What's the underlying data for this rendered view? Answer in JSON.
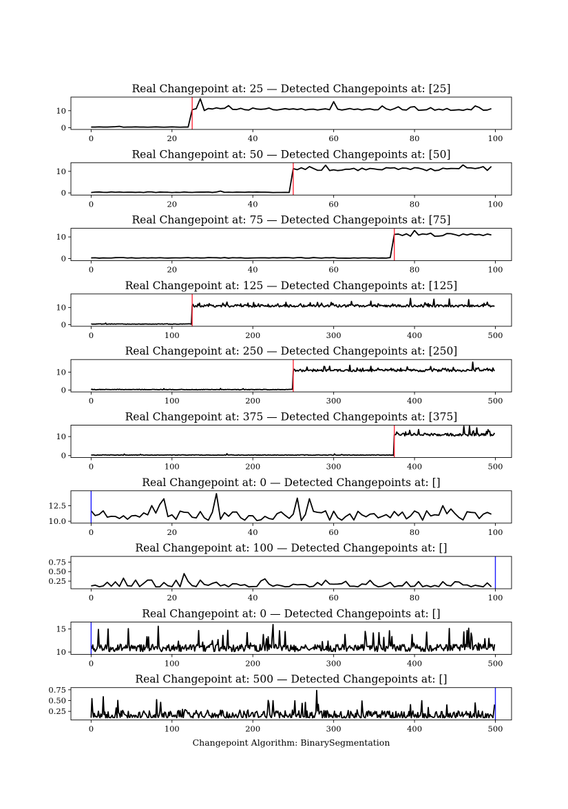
{
  "figure": {
    "xlabel": "Changepoint Algorithm: BinarySegmentation"
  },
  "chart_data": [
    {
      "type": "line",
      "title": "Real Changepoint at: 25 — Detected Changepoints at: [25]",
      "n": 100,
      "real_cp": 25,
      "detected": [
        25
      ],
      "marker": "detected",
      "low": 0.4,
      "high": 11,
      "noise": "small-step",
      "xlim": [
        -5,
        104
      ],
      "ylim": [
        -1,
        18
      ],
      "xticks": [
        0,
        20,
        40,
        60,
        80,
        100
      ],
      "yticks": [
        0,
        10
      ],
      "xticklabels": [
        "0",
        "20",
        "40",
        "60",
        "80",
        "100"
      ],
      "yticklabels": [
        "0",
        "10"
      ],
      "series": [
        {
          "color": "#000000",
          "approx_values": [
            0.4,
            0.4,
            0.5,
            0.4,
            0.4,
            0.5,
            0.6,
            0.8,
            0.3,
            0.4,
            0.4,
            0.5,
            0.4,
            0.4,
            0.3,
            0.4,
            0.5,
            0.4,
            0.3,
            0.4,
            0.5,
            0.4,
            0.3,
            0.4,
            0.4,
            10.6,
            11.2,
            17.0,
            10.1,
            11.3,
            11.0,
            11.7,
            11.2,
            11.4,
            13.0,
            10.8,
            10.7,
            11.4,
            10.6,
            10.4,
            11.6,
            11.0,
            10.8,
            11.0,
            11.6,
            10.6,
            10.4,
            10.8,
            11.2,
            10.8,
            11.1,
            10.7,
            11.2,
            10.4,
            10.8,
            10.9,
            10.4,
            10.8,
            11.1,
            10.6,
            15.3,
            10.9,
            10.4,
            10.8,
            11.3,
            10.7,
            11.0,
            10.4,
            10.9,
            11.1,
            10.5,
            10.6,
            12.8,
            11.1,
            10.4,
            11.2,
            12.3,
            10.6,
            10.4,
            12.1,
            12.4,
            10.2,
            10.4,
            10.6,
            11.8,
            10.3,
            10.9,
            10.4,
            11.3,
            10.2,
            10.4,
            10.6,
            10.2,
            10.9,
            10.5,
            12.8,
            11.9,
            10.3,
            10.4,
            11.2
          ]
        }
      ]
    },
    {
      "type": "line",
      "title": "Real Changepoint at: 50 — Detected Changepoints at: [50]",
      "n": 100,
      "real_cp": 50,
      "detected": [
        50
      ],
      "marker": "detected",
      "low": 0.3,
      "high": 11,
      "noise": "small-step",
      "xlim": [
        -5,
        104
      ],
      "ylim": [
        -1,
        14
      ],
      "xticks": [
        0,
        20,
        40,
        60,
        80,
        100
      ],
      "yticks": [
        0,
        10
      ],
      "xticklabels": [
        "0",
        "20",
        "40",
        "60",
        "80",
        "100"
      ],
      "yticklabels": [
        "0",
        "10"
      ],
      "series": [
        {
          "color": "#000000"
        }
      ]
    },
    {
      "type": "line",
      "title": "Real Changepoint at: 75 — Detected Changepoints at: [75]",
      "n": 100,
      "real_cp": 75,
      "detected": [
        75
      ],
      "marker": "detected",
      "low": 0.3,
      "high": 11,
      "noise": "small-step",
      "xlim": [
        -5,
        104
      ],
      "ylim": [
        -1,
        14
      ],
      "xticks": [
        0,
        20,
        40,
        60,
        80,
        100
      ],
      "yticks": [
        0,
        10
      ],
      "xticklabels": [
        "0",
        "20",
        "40",
        "60",
        "80",
        "100"
      ],
      "yticklabels": [
        "0",
        "10"
      ],
      "series": [
        {
          "color": "#000000"
        }
      ]
    },
    {
      "type": "line",
      "title": "Real Changepoint at: 125 — Detected Changepoints at: [125]",
      "n": 500,
      "real_cp": 125,
      "detected": [
        125
      ],
      "marker": "detected",
      "low": 0.3,
      "high": 11,
      "noise": "spiky",
      "xlim": [
        -25,
        520
      ],
      "ylim": [
        -1,
        18
      ],
      "xticks": [
        0,
        100,
        200,
        300,
        400,
        500
      ],
      "yticks": [
        0,
        10
      ],
      "xticklabels": [
        "0",
        "100",
        "200",
        "300",
        "400",
        "500"
      ],
      "yticklabels": [
        "0",
        "10"
      ],
      "series": [
        {
          "color": "#000000"
        }
      ]
    },
    {
      "type": "line",
      "title": "Real Changepoint at: 250 — Detected Changepoints at: [250]",
      "n": 500,
      "real_cp": 250,
      "detected": [
        250
      ],
      "marker": "detected",
      "low": 0.3,
      "high": 11,
      "noise": "spiky",
      "xlim": [
        -25,
        520
      ],
      "ylim": [
        -1,
        17
      ],
      "xticks": [
        0,
        100,
        200,
        300,
        400,
        500
      ],
      "yticks": [
        0,
        10
      ],
      "xticklabels": [
        "0",
        "100",
        "200",
        "300",
        "400",
        "500"
      ],
      "yticklabels": [
        "0",
        "10"
      ],
      "series": [
        {
          "color": "#000000"
        }
      ]
    },
    {
      "type": "line",
      "title": "Real Changepoint at: 375 — Detected Changepoints at: [375]",
      "n": 500,
      "real_cp": 375,
      "detected": [
        375
      ],
      "marker": "detected",
      "low": 0.3,
      "high": 11,
      "noise": "spiky",
      "xlim": [
        -25,
        520
      ],
      "ylim": [
        -1,
        16
      ],
      "xticks": [
        0,
        100,
        200,
        300,
        400,
        500
      ],
      "yticks": [
        0,
        10
      ],
      "xticklabels": [
        "0",
        "100",
        "200",
        "300",
        "400",
        "500"
      ],
      "yticklabels": [
        "0",
        "10"
      ],
      "series": [
        {
          "color": "#000000"
        }
      ]
    },
    {
      "type": "line",
      "title": "Real Changepoint at: 0 — Detected Changepoints at: []",
      "n": 100,
      "real_cp": 0,
      "detected": [],
      "marker": "real",
      "low": 10.8,
      "high": 10.8,
      "noise": "stationary",
      "xlim": [
        -5,
        104
      ],
      "ylim": [
        9.7,
        14.9
      ],
      "xticks": [
        0,
        20,
        40,
        60,
        80,
        100
      ],
      "yticks": [
        10,
        12.5
      ],
      "xticklabels": [
        "0",
        "20",
        "40",
        "60",
        "80",
        "100"
      ],
      "yticklabels": [
        "10.0",
        "12.5"
      ],
      "series": [
        {
          "color": "#000000"
        }
      ]
    },
    {
      "type": "line",
      "title": "Real Changepoint at: 100 — Detected Changepoints at: []",
      "n": 100,
      "real_cp": 100,
      "detected": [],
      "marker": "real",
      "low": 0.18,
      "high": 0.18,
      "noise": "small-positive",
      "xlim": [
        -5,
        104
      ],
      "ylim": [
        0.05,
        0.9
      ],
      "xticks": [
        0,
        20,
        40,
        60,
        80,
        100
      ],
      "yticks": [
        0.25,
        0.5,
        0.75
      ],
      "xticklabels": [
        "0",
        "20",
        "40",
        "60",
        "80",
        "100"
      ],
      "yticklabels": [
        "0.25",
        "0.50",
        "0.75"
      ],
      "series": [
        {
          "color": "#000000"
        }
      ]
    },
    {
      "type": "line",
      "title": "Real Changepoint at: 0 — Detected Changepoints at: []",
      "n": 500,
      "real_cp": 0,
      "detected": [],
      "marker": "real",
      "low": 10.8,
      "high": 10.8,
      "noise": "stationary-spiky",
      "xlim": [
        -25,
        520
      ],
      "ylim": [
        9.5,
        16.5
      ],
      "xticks": [
        0,
        100,
        200,
        300,
        400,
        500
      ],
      "yticks": [
        10,
        15
      ],
      "xticklabels": [
        "0",
        "100",
        "200",
        "300",
        "400",
        "500"
      ],
      "yticklabels": [
        "10",
        "15"
      ],
      "series": [
        {
          "color": "#000000"
        }
      ]
    },
    {
      "type": "line",
      "title": "Real Changepoint at: 500 — Detected Changepoints at: []",
      "n": 500,
      "real_cp": 500,
      "detected": [],
      "marker": "real",
      "low": 0.18,
      "high": 0.18,
      "noise": "small-positive-spiky",
      "xlim": [
        -25,
        520
      ],
      "ylim": [
        0.05,
        0.8
      ],
      "xticks": [
        0,
        100,
        200,
        300,
        400,
        500
      ],
      "yticks": [
        0.25,
        0.5,
        0.75
      ],
      "xticklabels": [
        "0",
        "100",
        "200",
        "300",
        "400",
        "500"
      ],
      "yticklabels": [
        "0.25",
        "0.50",
        "0.75"
      ],
      "series": [
        {
          "color": "#000000"
        }
      ]
    }
  ]
}
